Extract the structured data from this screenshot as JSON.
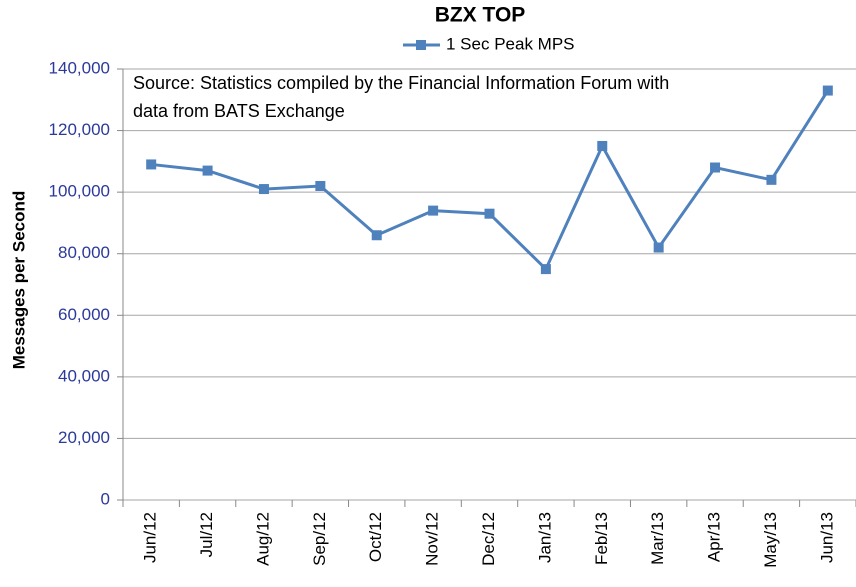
{
  "chart_data": {
    "type": "line",
    "title": "BZX TOP",
    "annotation": [
      "Source: Statistics compiled by the Financial Information Forum with",
      "data from BATS Exchange"
    ],
    "y_label": "Messages per Second",
    "categories": [
      "Jun/12",
      "Jul/12",
      "Aug/12",
      "Sep/12",
      "Oct/12",
      "Nov/12",
      "Dec/12",
      "Jan/13",
      "Feb/13",
      "Mar/13",
      "Apr/13",
      "May/13",
      "Jun/13"
    ],
    "series": [
      {
        "name": "1 Sec Peak MPS",
        "color": "#4f81bd",
        "values": [
          109000,
          107000,
          101000,
          102000,
          86000,
          94000,
          93000,
          75000,
          115000,
          82000,
          108000,
          104000,
          133000
        ]
      }
    ],
    "ylim": [
      0,
      140000
    ],
    "yticks": [
      0,
      {
        "value": 20000,
        "label": "20,000"
      },
      {
        "value": 40000,
        "label": "40,000"
      },
      {
        "value": 60000,
        "label": "60,000"
      },
      {
        "value": 80000,
        "label": "80,000"
      },
      {
        "value": 100000,
        "label": "100,000"
      },
      {
        "value": 120000,
        "label": "120,000"
      },
      {
        "value": 140000,
        "label": "140,000"
      }
    ],
    "grid": true
  }
}
